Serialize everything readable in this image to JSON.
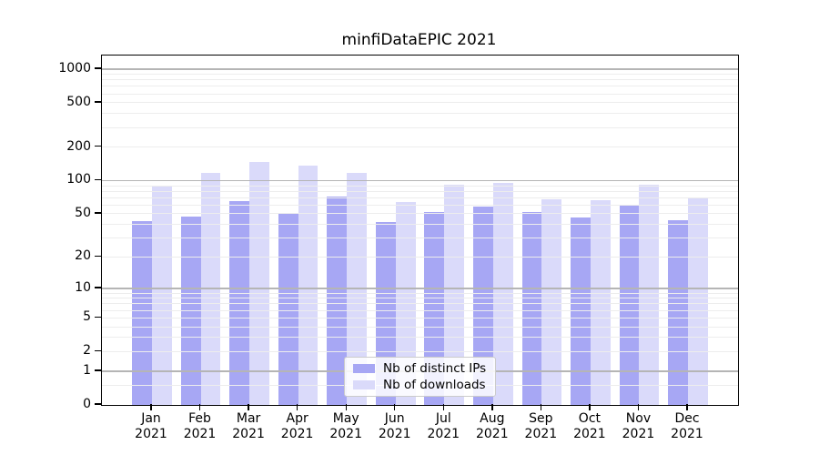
{
  "title": "minfiDataEPIC 2021",
  "chart_data": {
    "type": "bar",
    "title": "minfiDataEPIC 2021",
    "categories": [
      "Jan 2021",
      "Feb 2021",
      "Mar 2021",
      "Apr 2021",
      "May 2021",
      "Jun 2021",
      "Jul 2021",
      "Aug 2021",
      "Sep 2021",
      "Oct 2021",
      "Nov 2021",
      "Dec 2021"
    ],
    "series": [
      {
        "name": "Nb of distinct IPs",
        "color": "#a7a7f4",
        "values": [
          43,
          47,
          65,
          50,
          72,
          42,
          52,
          58,
          52,
          46,
          60,
          44
        ]
      },
      {
        "name": "Nb of downloads",
        "color": "#dadafa",
        "values": [
          88,
          118,
          148,
          136,
          117,
          64,
          92,
          96,
          68,
          66,
          92,
          70
        ]
      }
    ],
    "xlabel": "",
    "ylabel": "",
    "yscale": "log1p",
    "ylim": [
      0,
      1300
    ],
    "y_ticks": [
      0,
      1,
      2,
      5,
      10,
      20,
      50,
      100,
      200,
      500,
      1000
    ],
    "grid": true,
    "legend_position": "lower center"
  },
  "colors": {
    "bar_ips": "#a7a7f4",
    "bar_downloads": "#dadafa",
    "grid_major": "#b5b5b5",
    "grid_minor": "#ededed",
    "axis": "#000000",
    "background": "#ffffff"
  }
}
